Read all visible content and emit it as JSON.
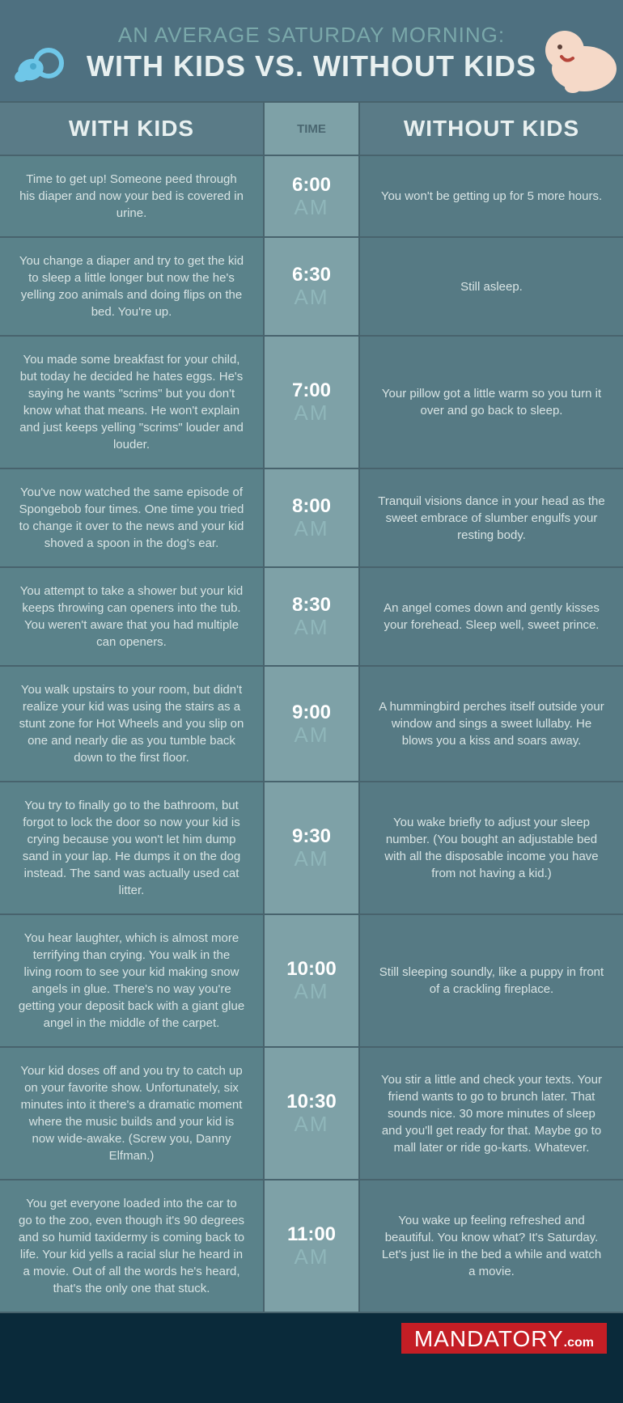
{
  "header": {
    "subtitle": "AN AVERAGE SATURDAY MORNING:",
    "title": "WITH KIDS VS. WITHOUT KIDS"
  },
  "columns": {
    "left": "WITH KIDS",
    "mid": "TIME",
    "right": "WITHOUT KIDS"
  },
  "rows": [
    {
      "time": "6:00",
      "ampm": "AM",
      "with": "Time to get up! Someone peed through his diaper and now your bed is covered in urine.",
      "without": "You won't be getting up for 5 more hours."
    },
    {
      "time": "6:30",
      "ampm": "AM",
      "with": "You change a diaper and try to get the kid to sleep a little longer but now the he's yelling zoo animals and doing flips on the bed. You're up.",
      "without": "Still asleep."
    },
    {
      "time": "7:00",
      "ampm": "AM",
      "with": "You made some breakfast for your child, but today he decided he hates eggs. He's saying he wants \"scrims\" but you don't know what that means. He won't explain and just keeps yelling \"scrims\" louder and louder.",
      "without": "Your pillow got a little warm so you turn it over and go back to sleep."
    },
    {
      "time": "8:00",
      "ampm": "AM",
      "with": "You've now watched the same episode of Spongebob four times. One time you tried to change it over to the news and your kid shoved a spoon in the dog's ear.",
      "without": "Tranquil visions dance in your head as the sweet embrace of slumber engulfs your resting body."
    },
    {
      "time": "8:30",
      "ampm": "AM",
      "with": "You attempt to take a shower but your kid keeps throwing can openers into the tub. You weren't aware that you had multiple can openers.",
      "without": "An angel comes down and gently kisses your forehead. Sleep well, sweet prince."
    },
    {
      "time": "9:00",
      "ampm": "AM",
      "with": "You walk upstairs to your room, but didn't realize your kid was using the stairs as a stunt zone for Hot Wheels and you slip on one and nearly die as you tumble back down to the first floor.",
      "without": "A hummingbird perches itself outside your window and sings a sweet lullaby. He blows you a kiss and soars away."
    },
    {
      "time": "9:30",
      "ampm": "AM",
      "with": "You try to finally go to the bathroom, but forgot to lock the door so now your kid is crying because you won't let him dump sand in your lap. He dumps it on the dog instead. The sand was actually used cat litter.",
      "without": "You wake briefly to adjust your sleep number. (You bought an adjustable bed with all the disposable income you have from not having a kid.)"
    },
    {
      "time": "10:00",
      "ampm": "AM",
      "with": "You hear laughter, which is almost more terrifying than crying. You walk in the living room to see your kid making snow angels in glue. There's no way you're getting your deposit back with a giant glue angel in the middle of the carpet.",
      "without": "Still sleeping soundly, like a puppy in front of a crackling fireplace."
    },
    {
      "time": "10:30",
      "ampm": "AM",
      "with": "Your kid doses off and you try to catch up on your favorite show. Unfortunately, six minutes into it there's a dramatic moment where the music builds and your kid is now wide-awake. (Screw you, Danny Elfman.)",
      "without": "You stir a little and check your texts. Your friend wants to go to brunch later. That sounds nice. 30 more minutes of sleep and you'll get ready for that. Maybe go to mall later or ride go-karts. Whatever."
    },
    {
      "time": "11:00",
      "ampm": "AM",
      "with": "You get everyone loaded into the car to go to the zoo, even though it's 90 degrees and so humid taxidermy is coming back to life. Your kid yells a racial slur he heard in a movie. Out of all the words he's heard, that's the only one that stuck.",
      "without": "You wake up feeling refreshed and beautiful. You know what? It's Saturday. Let's just lie in the bed a while and watch a movie."
    }
  ],
  "footer": {
    "brand": "MANDATORY",
    "dotcom": ".com"
  },
  "colors": {
    "page_bg": "#0a2a3a",
    "panel_bg": "#597884",
    "header_bg": "#4e7080",
    "time_col_bg": "#7ea1a7",
    "border": "#48636d",
    "brand_bg": "#c41e25"
  }
}
